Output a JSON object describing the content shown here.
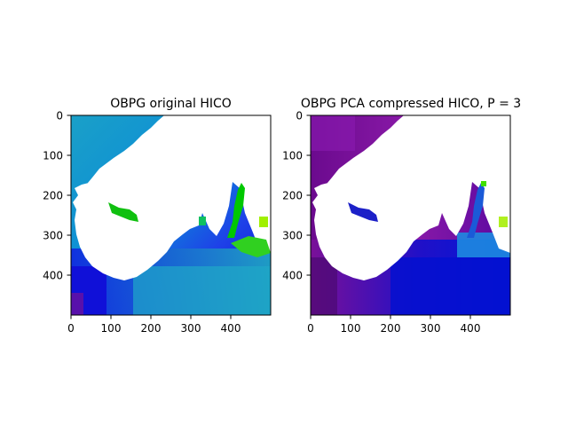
{
  "chart_data": [
    {
      "type": "heatmap",
      "title": "OBPG original HICO",
      "xlabel": "",
      "ylabel": "",
      "xlim": [
        0,
        500
      ],
      "ylim": [
        500,
        0
      ],
      "xticks": [
        0,
        100,
        200,
        300,
        400
      ],
      "yticks": [
        0,
        100,
        200,
        300,
        400
      ],
      "colormap": [
        "#0000ff",
        "#0099cc",
        "#00b0c0",
        "#00c800",
        "#7a00a0"
      ],
      "land_color": "#ffffff"
    },
    {
      "type": "heatmap",
      "title": "OBPG PCA compressed HICO, P = 3",
      "xlabel": "",
      "ylabel": "",
      "xlim": [
        0,
        500
      ],
      "ylim": [
        500,
        0
      ],
      "xticks": [
        0,
        100,
        200,
        300,
        400
      ],
      "yticks": [
        0,
        100,
        200,
        300,
        400
      ],
      "colormap": [
        "#6a0a9a",
        "#7b1fa2",
        "#0000c8",
        "#1e6ee0",
        "#00c800"
      ],
      "land_color": "#ffffff"
    }
  ]
}
